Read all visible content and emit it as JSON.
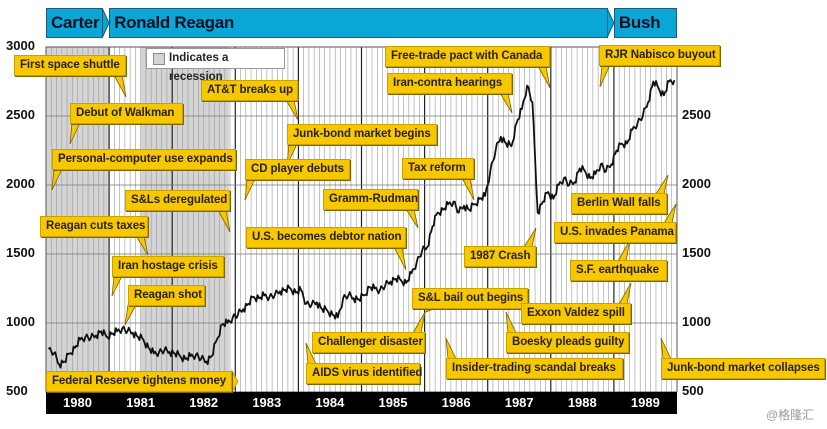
{
  "presidents": [
    {
      "name": "Carter",
      "start": 1980.0,
      "end": 1981.0
    },
    {
      "name": "Ronald Reagan",
      "start": 1981.0,
      "end": 1989.0
    },
    {
      "name": "Bush",
      "start": 1989.0,
      "end": 1990.0
    }
  ],
  "legend": {
    "label": "Indicates a recession",
    "swatch_color": "#d4d4d4"
  },
  "watermark": "@格隆汇",
  "colors": {
    "president_bar": "#0aa6d6",
    "callout": "#f7c800",
    "line": "#111111",
    "year_band": "#000000",
    "recession": "#d4d4d4"
  },
  "annotations": [
    "First space shuttle",
    "Debut of Walkman",
    "Personal-computer use expands",
    "S&Ls deregulated",
    "Reagan cuts taxes",
    "Iran hostage crisis",
    "Reagan shot",
    "Federal Reserve tightens money",
    "AT&T breaks up",
    "Junk-bond market begins",
    "CD player debuts",
    "Gramm-Rudman",
    "U.S. becomes debtor nation",
    "Challenger disaster",
    "AIDS virus identified",
    "Free-trade pact with Canada",
    "Iran-contra hearings",
    "Tax reform",
    "1987 Crash",
    "S&L bail out begins",
    "Boesky pleads guilty",
    "Insider-trading scandal breaks",
    "Exxon Valdez spill",
    "S.F. earthquake",
    "U.S. invades Panama",
    "Berlin Wall falls",
    "RJR Nabisco buyout",
    "Junk-bond market collapses"
  ],
  "chart_data": {
    "type": "line",
    "title": "",
    "xlabel": "",
    "ylabel": "",
    "ylim": [
      500,
      3000
    ],
    "yticks_left": [
      "3000",
      "2500",
      "2000",
      "1500",
      "1000",
      "500"
    ],
    "yticks_right": [
      "2500",
      "2000",
      "1500",
      "1000",
      "500"
    ],
    "x_ticks": [
      "1980",
      "1981",
      "1982",
      "1983",
      "1984",
      "1985",
      "1986",
      "1987",
      "1988",
      "1989"
    ],
    "xlim": [
      1980,
      1990
    ],
    "grid": "monthly vertical lines, horizontal every 500",
    "recessions": [
      [
        1980.0,
        1981.0
      ],
      [
        1981.5,
        1982.9
      ]
    ],
    "monthly": [
      {
        "year": 1980,
        "values": [
          810,
          780,
          700,
          720,
          780,
          820,
          880,
          900,
          890,
          910,
          940,
          900
        ]
      },
      {
        "year": 1981,
        "values": [
          920,
          940,
          960,
          940,
          930,
          900,
          880,
          820,
          780,
          790,
          800,
          790
        ]
      },
      {
        "year": 1982,
        "values": [
          780,
          760,
          740,
          760,
          770,
          740,
          720,
          760,
          880,
          990,
          1000,
          1040
        ]
      },
      {
        "year": 1983,
        "values": [
          1060,
          1100,
          1140,
          1190,
          1180,
          1200,
          1190,
          1200,
          1230,
          1240,
          1250,
          1220
        ]
      },
      {
        "year": 1984,
        "values": [
          1240,
          1140,
          1130,
          1150,
          1100,
          1090,
          1060,
          1040,
          1180,
          1200,
          1180,
          1170
        ]
      },
      {
        "year": 1985,
        "values": [
          1200,
          1260,
          1250,
          1240,
          1270,
          1300,
          1320,
          1310,
          1290,
          1360,
          1440,
          1520
        ]
      },
      {
        "year": 1986,
        "values": [
          1550,
          1700,
          1800,
          1820,
          1860,
          1880,
          1800,
          1850,
          1820,
          1860,
          1900,
          1920
        ]
      },
      {
        "year": 1987,
        "values": [
          2100,
          2250,
          2350,
          2300,
          2280,
          2450,
          2550,
          2720,
          2600,
          1800,
          1880,
          1950
        ]
      },
      {
        "year": 1988,
        "values": [
          1900,
          2000,
          2050,
          2000,
          2020,
          2120,
          2100,
          2050,
          2080,
          2150,
          2100,
          2150
        ]
      },
      {
        "year": 1989,
        "values": [
          2250,
          2300,
          2300,
          2400,
          2450,
          2500,
          2600,
          2750,
          2700,
          2650,
          2750,
          2760
        ]
      }
    ]
  }
}
